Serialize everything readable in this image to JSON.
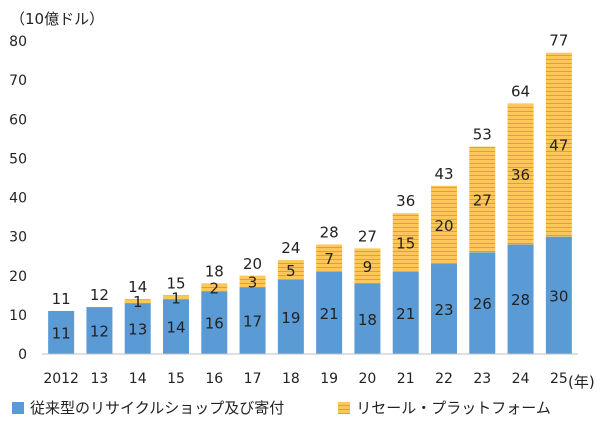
{
  "chart_data": {
    "type": "bar",
    "stacked": true,
    "unit_label": "（10億ドル）",
    "x_unit_label": "(年)",
    "categories": [
      "2012",
      "13",
      "14",
      "15",
      "16",
      "17",
      "18",
      "19",
      "20",
      "21",
      "22",
      "23",
      "24",
      "25"
    ],
    "series": [
      {
        "name": "従来型のリサイクルショップ及び寄付",
        "values": [
          11,
          12,
          13,
          14,
          16,
          17,
          19,
          21,
          18,
          21,
          23,
          26,
          28,
          30
        ],
        "color": "#5b9bd5"
      },
      {
        "name": "リセール・プラットフォーム",
        "values": [
          0,
          0,
          1,
          1,
          2,
          3,
          5,
          7,
          9,
          15,
          20,
          27,
          36,
          47
        ],
        "color": "#fdc75a",
        "hatch": "#e8a11c"
      }
    ],
    "totals": [
      11,
      12,
      14,
      15,
      18,
      20,
      24,
      28,
      27,
      36,
      43,
      53,
      64,
      77
    ],
    "ylim": [
      0,
      80
    ],
    "yticks": [
      0,
      10,
      20,
      30,
      40,
      50,
      60,
      70,
      80
    ],
    "grid": false,
    "legend_position": "bottom"
  }
}
